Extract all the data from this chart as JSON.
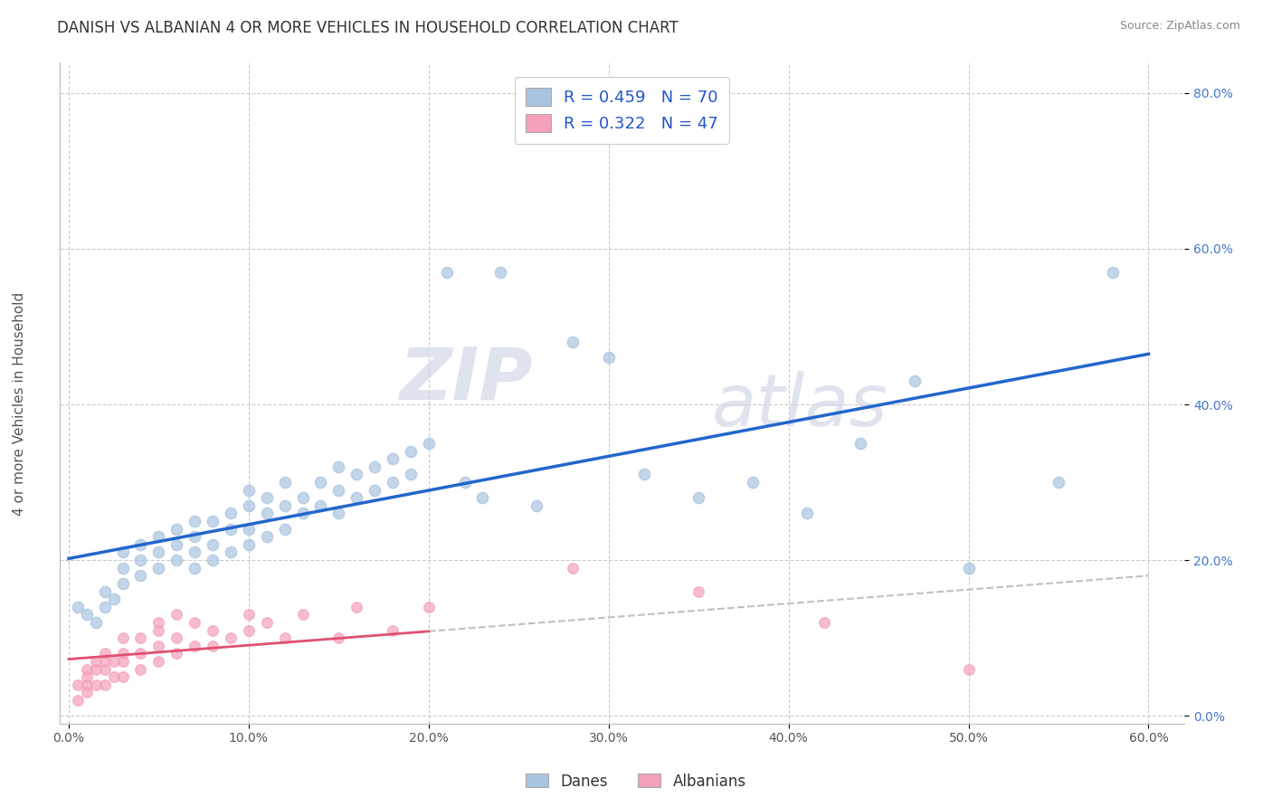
{
  "title": "DANISH VS ALBANIAN 4 OR MORE VEHICLES IN HOUSEHOLD CORRELATION CHART",
  "source": "Source: ZipAtlas.com",
  "ylabel": "4 or more Vehicles in Household",
  "xlim": [
    -0.005,
    0.62
  ],
  "ylim": [
    -0.01,
    0.84
  ],
  "xticks": [
    0.0,
    0.1,
    0.2,
    0.3,
    0.4,
    0.5,
    0.6
  ],
  "xticklabels": [
    "0.0%",
    "10.0%",
    "20.0%",
    "30.0%",
    "40.0%",
    "50.0%",
    "60.0%"
  ],
  "yticks": [
    0.0,
    0.2,
    0.4,
    0.6,
    0.8
  ],
  "yticklabels": [
    "0.0%",
    "20.0%",
    "40.0%",
    "60.0%",
    "80.0%"
  ],
  "danish_color": "#a8c4e0",
  "albanian_color": "#f4a0b8",
  "danish_line_color": "#2266cc",
  "albanian_line_color": "#e05070",
  "conf_band_color": "#c0c0c0",
  "watermark_zip": "ZIP",
  "watermark_atlas": "atlas",
  "legend_label_danish": "R = 0.459   N = 70",
  "legend_label_albanian": "R = 0.322   N = 47",
  "danish_x": [
    0.005,
    0.01,
    0.015,
    0.02,
    0.02,
    0.025,
    0.03,
    0.03,
    0.03,
    0.04,
    0.04,
    0.04,
    0.05,
    0.05,
    0.05,
    0.06,
    0.06,
    0.06,
    0.07,
    0.07,
    0.07,
    0.07,
    0.08,
    0.08,
    0.08,
    0.09,
    0.09,
    0.09,
    0.1,
    0.1,
    0.1,
    0.1,
    0.11,
    0.11,
    0.11,
    0.12,
    0.12,
    0.12,
    0.13,
    0.13,
    0.14,
    0.14,
    0.15,
    0.15,
    0.15,
    0.16,
    0.16,
    0.17,
    0.17,
    0.18,
    0.18,
    0.19,
    0.19,
    0.2,
    0.21,
    0.22,
    0.23,
    0.24,
    0.26,
    0.28,
    0.3,
    0.32,
    0.35,
    0.38,
    0.41,
    0.44,
    0.47,
    0.5,
    0.55,
    0.58
  ],
  "danish_y": [
    0.14,
    0.13,
    0.12,
    0.14,
    0.16,
    0.15,
    0.17,
    0.19,
    0.21,
    0.18,
    0.2,
    0.22,
    0.19,
    0.21,
    0.23,
    0.2,
    0.22,
    0.24,
    0.19,
    0.21,
    0.23,
    0.25,
    0.2,
    0.22,
    0.25,
    0.21,
    0.24,
    0.26,
    0.22,
    0.24,
    0.27,
    0.29,
    0.23,
    0.26,
    0.28,
    0.24,
    0.27,
    0.3,
    0.26,
    0.28,
    0.27,
    0.3,
    0.26,
    0.29,
    0.32,
    0.28,
    0.31,
    0.29,
    0.32,
    0.3,
    0.33,
    0.31,
    0.34,
    0.35,
    0.57,
    0.3,
    0.28,
    0.57,
    0.27,
    0.48,
    0.46,
    0.31,
    0.28,
    0.3,
    0.26,
    0.35,
    0.43,
    0.19,
    0.3,
    0.57
  ],
  "albanian_x": [
    0.005,
    0.005,
    0.01,
    0.01,
    0.01,
    0.01,
    0.015,
    0.015,
    0.015,
    0.02,
    0.02,
    0.02,
    0.02,
    0.025,
    0.025,
    0.03,
    0.03,
    0.03,
    0.03,
    0.04,
    0.04,
    0.04,
    0.05,
    0.05,
    0.05,
    0.05,
    0.06,
    0.06,
    0.06,
    0.07,
    0.07,
    0.08,
    0.08,
    0.09,
    0.1,
    0.1,
    0.11,
    0.12,
    0.13,
    0.15,
    0.16,
    0.18,
    0.2,
    0.28,
    0.35,
    0.42,
    0.5
  ],
  "albanian_y": [
    0.02,
    0.04,
    0.03,
    0.05,
    0.04,
    0.06,
    0.04,
    0.06,
    0.07,
    0.04,
    0.06,
    0.07,
    0.08,
    0.05,
    0.07,
    0.05,
    0.07,
    0.08,
    0.1,
    0.06,
    0.08,
    0.1,
    0.07,
    0.09,
    0.11,
    0.12,
    0.08,
    0.1,
    0.13,
    0.09,
    0.12,
    0.09,
    0.11,
    0.1,
    0.11,
    0.13,
    0.12,
    0.1,
    0.13,
    0.1,
    0.14,
    0.11,
    0.14,
    0.19,
    0.16,
    0.12,
    0.06
  ],
  "background_color": "#ffffff",
  "grid_color": "#cccccc"
}
